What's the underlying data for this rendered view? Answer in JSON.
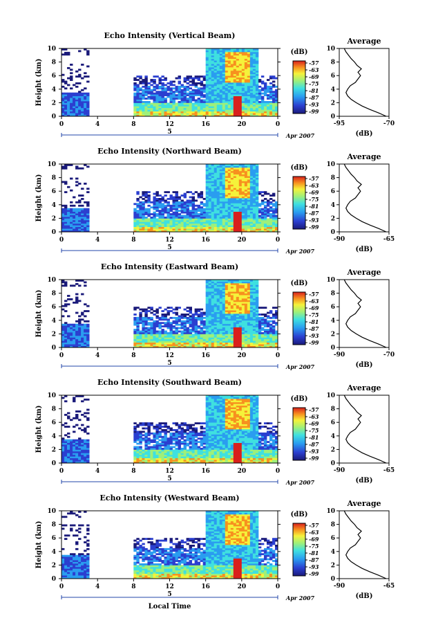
{
  "chart_data": {
    "type": "heatmap",
    "date_label": "Apr 2007",
    "day_label": "5",
    "xlabel": "Local Time",
    "ylabel": "Height (km)",
    "x_ticks": [
      "0",
      "4",
      "8",
      "12",
      "16",
      "20",
      "0"
    ],
    "xlim": [
      0,
      24
    ],
    "y_ticks": [
      "0",
      "2",
      "4",
      "6",
      "8",
      "10"
    ],
    "ylim": [
      0,
      10
    ],
    "colorbar_unit": "(dB)",
    "colorbar_ticks": [
      "-57",
      "-63",
      "-69",
      "-75",
      "-81",
      "-87",
      "-93",
      "-99"
    ],
    "average_title": "Average",
    "average_xlabel": "(dB)",
    "panels": [
      {
        "title": "Echo Intensity (Vertical Beam)",
        "avg_xticks": [
          "-95",
          "-70"
        ],
        "avg_xlim": [
          -95,
          -70
        ]
      },
      {
        "title": "Echo Intensity (Northward Beam)",
        "avg_xticks": [
          "-90",
          "-65"
        ],
        "avg_xlim": [
          -90,
          -65
        ]
      },
      {
        "title": "Echo Intensity (Eastward Beam)",
        "avg_xticks": [
          "-90",
          "-70"
        ],
        "avg_xlim": [
          -90,
          -70
        ]
      },
      {
        "title": "Echo Intensity (Southward Beam)",
        "avg_xticks": [
          "-90",
          "-65"
        ],
        "avg_xlim": [
          -90,
          -65
        ]
      },
      {
        "title": "Echo Intensity (Westward Beam)",
        "avg_xticks": [
          "-90",
          "-65"
        ],
        "avg_xlim": [
          -90,
          -65
        ]
      }
    ],
    "average_profile_heights": [
      0,
      0.5,
      1,
      1.5,
      2,
      2.5,
      3,
      3.5,
      4,
      4.5,
      5,
      5.5,
      6,
      6.5,
      7,
      7.5,
      8,
      8.5,
      9,
      9.5,
      10
    ],
    "average_profile_fraction": [
      1.0,
      0.82,
      0.62,
      0.44,
      0.3,
      0.18,
      0.1,
      0.06,
      0.1,
      0.16,
      0.28,
      0.34,
      0.4,
      0.34,
      0.42,
      0.32,
      0.26,
      0.18,
      0.12,
      0.06,
      0.02
    ]
  }
}
